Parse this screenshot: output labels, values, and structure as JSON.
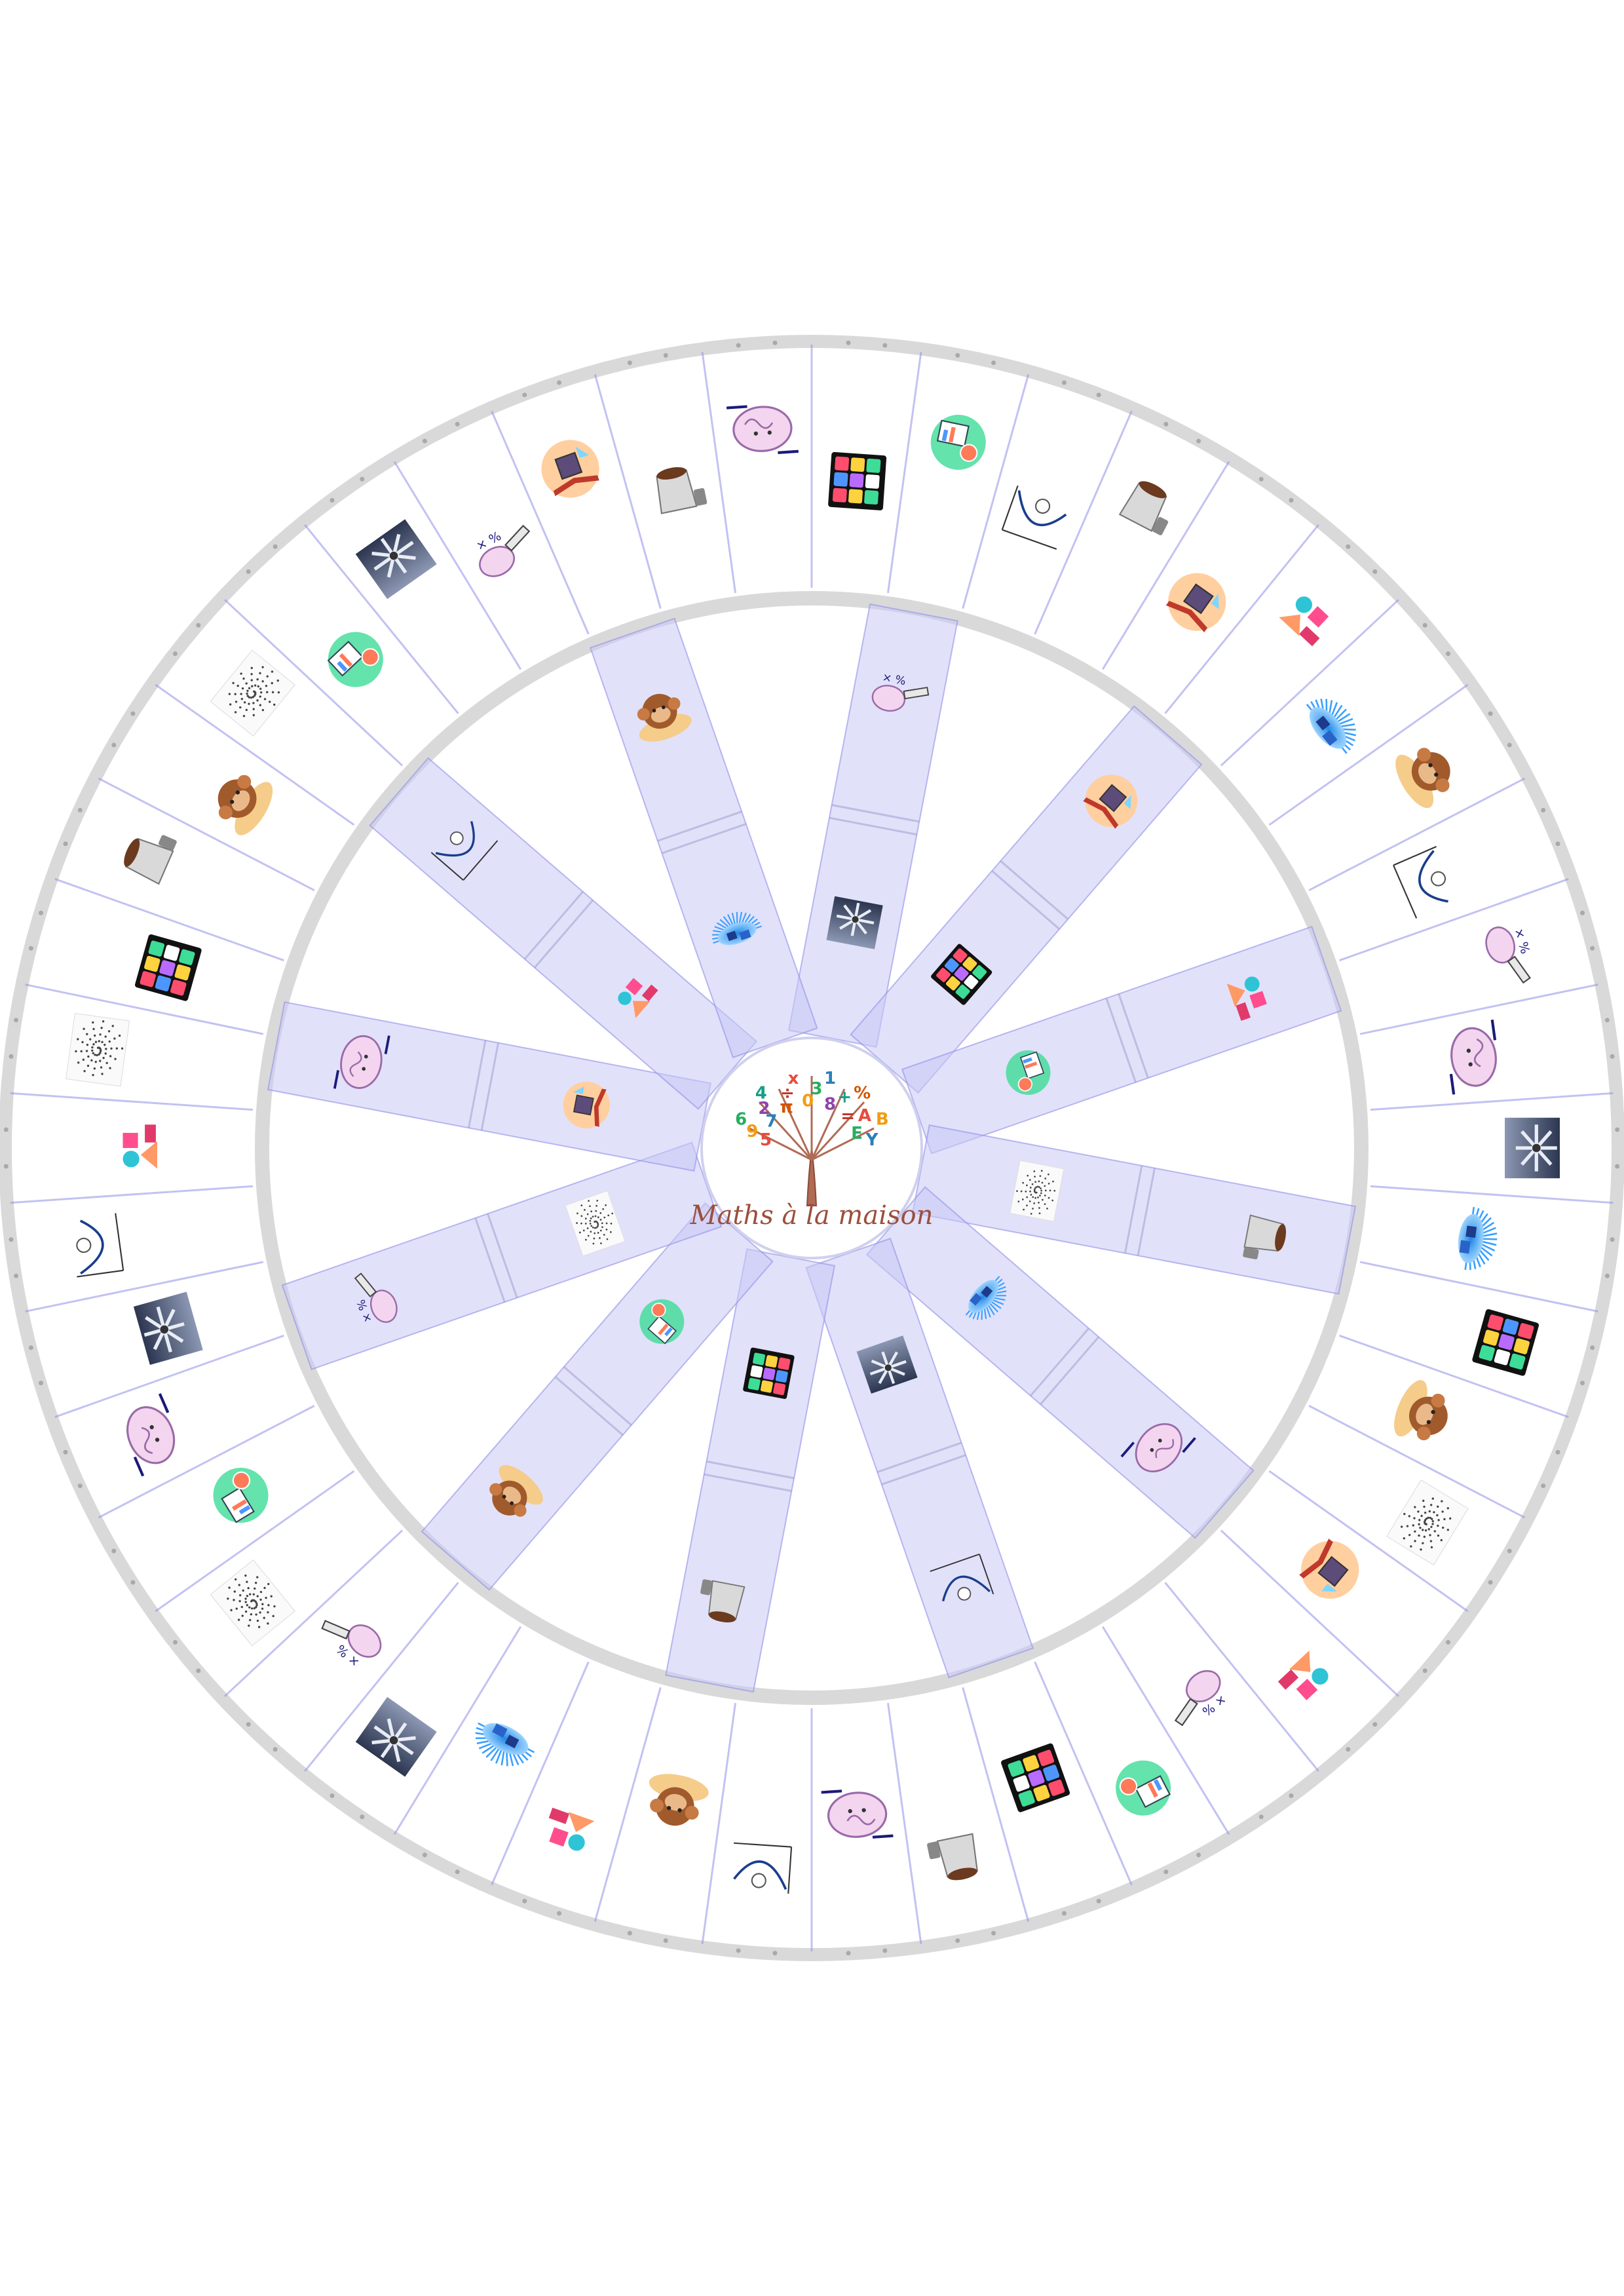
{
  "logo": {
    "text": "Maths à la maison",
    "tree_symbols": [
      "5",
      "9",
      "6",
      "7",
      "2",
      "4",
      "π",
      "÷",
      "x",
      "0",
      "3",
      "1",
      "8",
      "+",
      "%",
      "=",
      "A",
      "B",
      "E",
      "Y"
    ]
  },
  "symbols": [
    "cube",
    "brain",
    "monkey",
    "cone",
    "spiral",
    "windmill",
    "chart",
    "blocks",
    "curve",
    "tablet",
    "splash",
    "pencil",
    "book"
  ],
  "outer_ring": [
    "cube",
    "chart",
    "curve",
    "cone",
    "book",
    "blocks",
    "splash",
    "monkey",
    "curve",
    "pencil",
    "brain",
    "windmill",
    "splash",
    "cube",
    "monkey",
    "spiral",
    "book",
    "blocks",
    "pencil",
    "chart",
    "cube",
    "cone",
    "brain",
    "curve",
    "monkey",
    "blocks",
    "splash",
    "windmill",
    "pencil",
    "spiral",
    "chart",
    "brain",
    "windmill",
    "curve",
    "blocks",
    "spiral",
    "cube",
    "cone",
    "monkey",
    "spiral",
    "chart",
    "windmill",
    "pencil",
    "book",
    "cone",
    "brain"
  ],
  "inner_spokes": [
    [
      "pencil",
      "windmill"
    ],
    [
      "book",
      "cube"
    ],
    [
      "blocks",
      "chart"
    ],
    [
      "cone",
      "spiral"
    ],
    [
      "brain",
      "splash"
    ],
    [
      "curve",
      "windmill"
    ],
    [
      "cone",
      "cube"
    ],
    [
      "monkey",
      "chart"
    ],
    [
      "pencil",
      "spiral"
    ],
    [
      "brain",
      "book"
    ],
    [
      "curve",
      "blocks"
    ],
    [
      "monkey",
      "splash"
    ]
  ],
  "colors": {
    "ring": "#d9d9d9",
    "spoke": "#c9c9f5",
    "line": "#8f8fe8",
    "cube": [
      "#ff4d6d",
      "#ffd23f",
      "#3ddc97",
      "#4d96ff",
      "#b96bff",
      "#ffffff"
    ]
  }
}
